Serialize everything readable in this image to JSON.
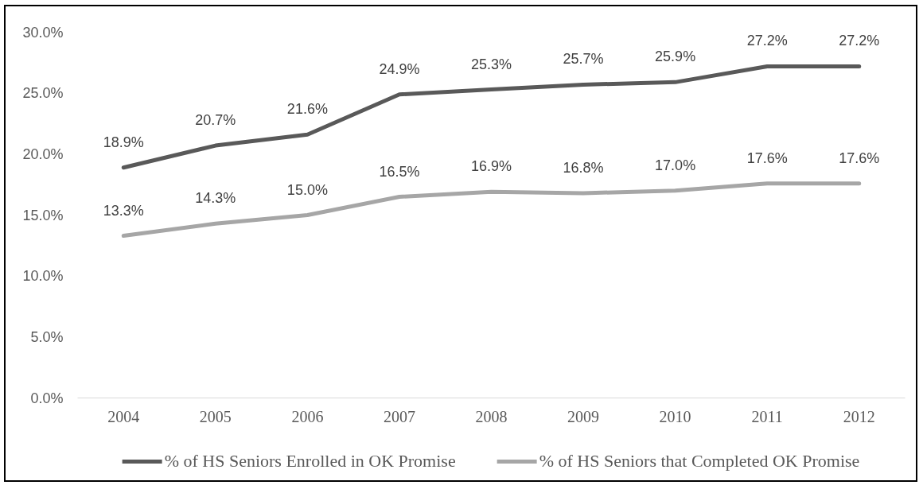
{
  "chart_data": {
    "type": "line",
    "categories": [
      "2004",
      "2005",
      "2006",
      "2007",
      "2008",
      "2009",
      "2010",
      "2011",
      "2012"
    ],
    "series": [
      {
        "name": "% of HS Seniors Enrolled in OK Promise",
        "color": "#595959",
        "values": [
          18.9,
          20.7,
          21.6,
          24.9,
          25.3,
          25.7,
          25.9,
          27.2,
          27.2
        ],
        "value_labels": [
          "18.9%",
          "20.7%",
          "21.6%",
          "24.9%",
          "25.3%",
          "25.7%",
          "25.9%",
          "27.2%",
          "27.2%"
        ]
      },
      {
        "name": "% of HS Seniors that Completed OK Promise",
        "color": "#a6a6a6",
        "values": [
          13.3,
          14.3,
          15.0,
          16.5,
          16.9,
          16.8,
          17.0,
          17.6,
          17.6
        ],
        "value_labels": [
          "13.3%",
          "14.3%",
          "15.0%",
          "16.5%",
          "16.9%",
          "16.8%",
          "17.0%",
          "17.6%",
          "17.6%"
        ]
      }
    ],
    "ylim": [
      0,
      30
    ],
    "yticks": [
      {
        "value": 0,
        "label": "0.0%"
      },
      {
        "value": 5,
        "label": "5.0%"
      },
      {
        "value": 10,
        "label": "10.0%"
      },
      {
        "value": 15,
        "label": "15.0%"
      },
      {
        "value": 20,
        "label": "20.0%"
      },
      {
        "value": 25,
        "label": "25.0%"
      },
      {
        "value": 30,
        "label": "30.0%"
      }
    ],
    "legend": "bottom"
  }
}
